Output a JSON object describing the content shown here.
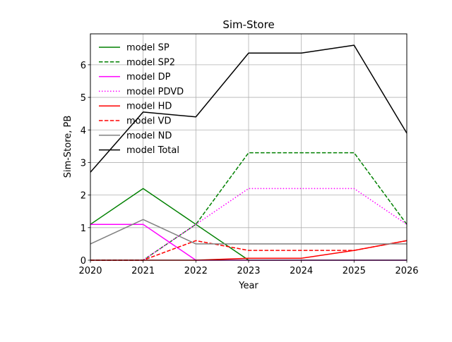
{
  "chart_data": {
    "type": "line",
    "title": "Sim-Store",
    "xlabel": "Year",
    "ylabel": "Sim-Store, PB",
    "xlim": [
      2020,
      2026
    ],
    "ylim": [
      0,
      6.95
    ],
    "grid": true,
    "legend_position": "top-left",
    "x": [
      2020,
      2021,
      2022,
      2023,
      2024,
      2025,
      2026
    ],
    "x_tick_labels": [
      "2020",
      "2021",
      "2022",
      "2023",
      "2024",
      "2025",
      "2026"
    ],
    "y_ticks": [
      0,
      1,
      2,
      3,
      4,
      5,
      6
    ],
    "y_tick_labels": [
      "0",
      "1",
      "2",
      "3",
      "4",
      "5",
      "6"
    ],
    "series": [
      {
        "name": "model SP",
        "color": "#008000",
        "style": "solid",
        "values": [
          1.1,
          2.2,
          1.1,
          0.0,
          0.0,
          0.0,
          0.0
        ]
      },
      {
        "name": "model SP2",
        "color": "#008000",
        "style": "dashed",
        "values": [
          0.0,
          0.0,
          1.1,
          3.3,
          3.3,
          3.3,
          1.1
        ]
      },
      {
        "name": "model DP",
        "color": "#ff00ff",
        "style": "solid",
        "values": [
          1.1,
          1.1,
          0.0,
          0.0,
          0.0,
          0.0,
          0.0
        ]
      },
      {
        "name": "model PDVD",
        "color": "#ff00ff",
        "style": "dotted",
        "values": [
          0.0,
          0.0,
          1.1,
          2.2,
          2.2,
          2.2,
          1.1
        ]
      },
      {
        "name": "model HD",
        "color": "#ff0000",
        "style": "solid",
        "values": [
          0.0,
          0.0,
          0.0,
          0.06,
          0.06,
          0.3,
          0.6
        ]
      },
      {
        "name": "model VD",
        "color": "#ff0000",
        "style": "dashed",
        "values": [
          0.0,
          0.0,
          0.6,
          0.3,
          0.3,
          0.3,
          0.6
        ]
      },
      {
        "name": "model ND",
        "color": "#808080",
        "style": "solid",
        "values": [
          0.5,
          1.25,
          0.5,
          0.5,
          0.5,
          0.5,
          0.5
        ]
      },
      {
        "name": "model Total",
        "color": "#000000",
        "style": "solid",
        "values": [
          2.7,
          4.55,
          4.4,
          6.36,
          6.36,
          6.6,
          3.9
        ]
      }
    ]
  }
}
